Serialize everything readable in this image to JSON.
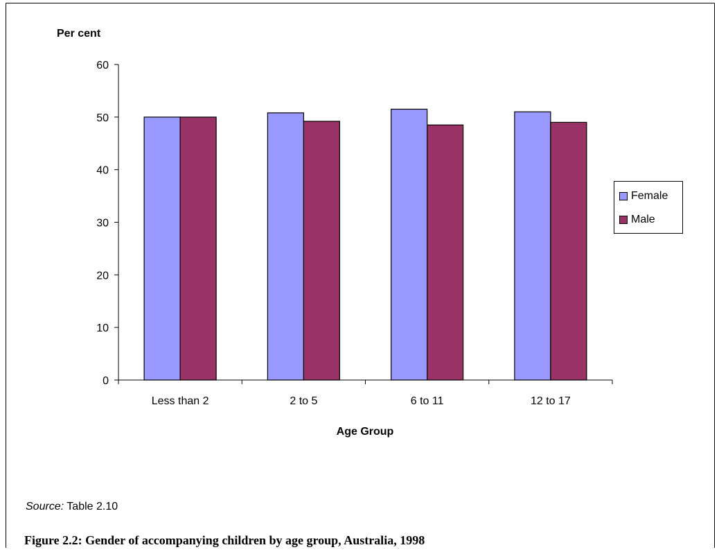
{
  "chart_data": {
    "type": "bar",
    "categories": [
      "Less than 2",
      "2 to 5",
      "6 to 11",
      "12 to 17"
    ],
    "series": [
      {
        "name": "Female",
        "values": [
          50.0,
          50.8,
          51.5,
          51.0
        ],
        "color": "#9999ff"
      },
      {
        "name": "Male",
        "values": [
          50.0,
          49.2,
          48.5,
          49.0
        ],
        "color": "#993366"
      }
    ],
    "ylabel": "Per cent",
    "xlabel": "Age Group",
    "ylim": [
      0,
      60
    ],
    "yticks": [
      "0",
      "10",
      "20",
      "30",
      "40",
      "50",
      "60"
    ],
    "grid": false,
    "legend_position": "right"
  },
  "source": {
    "label": "Source:",
    "text": " Table 2.10"
  },
  "caption": "Figure 2.2: Gender of accompanying children by age group, Australia, 1998"
}
